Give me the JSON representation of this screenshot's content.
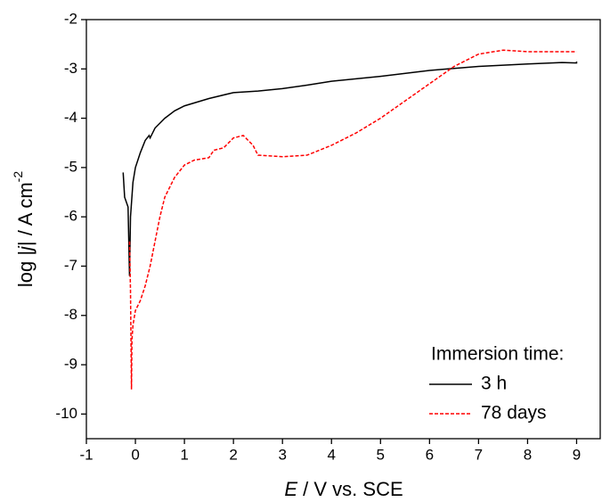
{
  "chart_data": {
    "type": "line",
    "x_label": {
      "italic": "E",
      "rest": " / V vs. SCE"
    },
    "y_label": {
      "pre": "log |",
      "italic": "j",
      "post": "| / A cm",
      "sup": "-2"
    },
    "legend_title": "Immersion time:",
    "xlim": [
      -1,
      9.5
    ],
    "ylim": [
      -10.5,
      -2
    ],
    "xticks": [
      -1,
      0,
      1,
      2,
      3,
      4,
      5,
      6,
      7,
      8,
      9
    ],
    "yticks": [
      -10,
      -9,
      -8,
      -7,
      -6,
      -5,
      -4,
      -3,
      -2
    ],
    "series": [
      {
        "name": "3 h",
        "color": "#000000",
        "dash": "solid",
        "x": [
          -0.25,
          -0.22,
          -0.15,
          -0.12,
          -0.1,
          -0.05,
          0,
          0.1,
          0.2,
          0.28,
          0.3,
          0.4,
          0.6,
          0.8,
          1.0,
          1.5,
          2.0,
          2.5,
          3,
          3.5,
          4,
          5,
          6,
          7,
          8,
          8.7,
          9,
          9.0
        ],
        "values": [
          -5.1,
          -5.6,
          -5.8,
          -7.2,
          -6.0,
          -5.3,
          -5.0,
          -4.7,
          -4.45,
          -4.35,
          -4.4,
          -4.2,
          -4.0,
          -3.85,
          -3.75,
          -3.6,
          -3.48,
          -3.45,
          -3.4,
          -3.33,
          -3.25,
          -3.15,
          -3.03,
          -2.95,
          -2.9,
          -2.87,
          -2.88,
          -2.85
        ]
      },
      {
        "name": "78 days",
        "color": "#ff0000",
        "dash": "dashed",
        "x": [
          -0.12,
          -0.1,
          -0.08,
          -0.07,
          -0.05,
          0,
          0.1,
          0.2,
          0.3,
          0.4,
          0.5,
          0.6,
          0.8,
          1.0,
          1.2,
          1.5,
          1.6,
          1.8,
          2.0,
          2.2,
          2.4,
          2.5,
          3,
          3.5,
          4,
          4.5,
          5,
          5.5,
          6,
          6.5,
          7,
          7.5,
          8,
          8.5,
          9
        ],
        "values": [
          -6.5,
          -7.5,
          -9.5,
          -8.5,
          -8.2,
          -7.9,
          -7.7,
          -7.4,
          -7.0,
          -6.5,
          -6.0,
          -5.6,
          -5.2,
          -4.95,
          -4.85,
          -4.8,
          -4.65,
          -4.6,
          -4.4,
          -4.35,
          -4.55,
          -4.75,
          -4.78,
          -4.75,
          -4.55,
          -4.3,
          -4.0,
          -3.65,
          -3.3,
          -2.95,
          -2.7,
          -2.62,
          -2.65,
          -2.65,
          -2.65
        ]
      }
    ]
  }
}
